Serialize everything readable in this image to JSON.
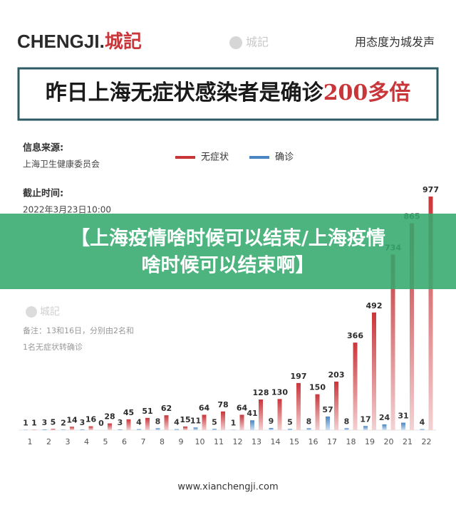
{
  "header": {
    "logo": "CHENGJI.",
    "logo_cn": "城記",
    "watermark": "城記",
    "slogan": "用态度为城发声"
  },
  "headline": {
    "text": "昨日上海无症状感染者是确诊",
    "highlight": "200多倍"
  },
  "info": {
    "source_label": "信息来源:",
    "source": "上海卫生健康委员会",
    "time_label": "截止时间:",
    "time": "2022年3月23日10:00"
  },
  "chart_data": {
    "type": "bar",
    "categories": [
      "1",
      "2",
      "3",
      "4",
      "5",
      "6",
      "7",
      "8",
      "9",
      "10",
      "11",
      "12",
      "13",
      "14",
      "15",
      "16",
      "17",
      "18",
      "19",
      "20",
      "21",
      "22"
    ],
    "series": [
      {
        "name": "无症状",
        "color": "#c9363a",
        "values": [
          1,
          5,
          14,
          16,
          28,
          45,
          51,
          62,
          15,
          64,
          78,
          64,
          128,
          130,
          197,
          150,
          203,
          366,
          492,
          734,
          865,
          977
        ]
      },
      {
        "name": "确诊",
        "color": "#4a86c5",
        "values": [
          1,
          3,
          2,
          3,
          0,
          3,
          4,
          8,
          4,
          11,
          5,
          1,
          41,
          9,
          5,
          8,
          57,
          8,
          17,
          24,
          31,
          4
        ]
      }
    ],
    "watermark": "城記",
    "note": [
      "备注：13和16日，分别由2名和",
      "1名无症状转确诊"
    ]
  },
  "footer": "www.xianchengji.com",
  "banner": [
    "【上海疫情啥时候可以结束/上海疫情",
    "啥时候可以结束啊】"
  ]
}
